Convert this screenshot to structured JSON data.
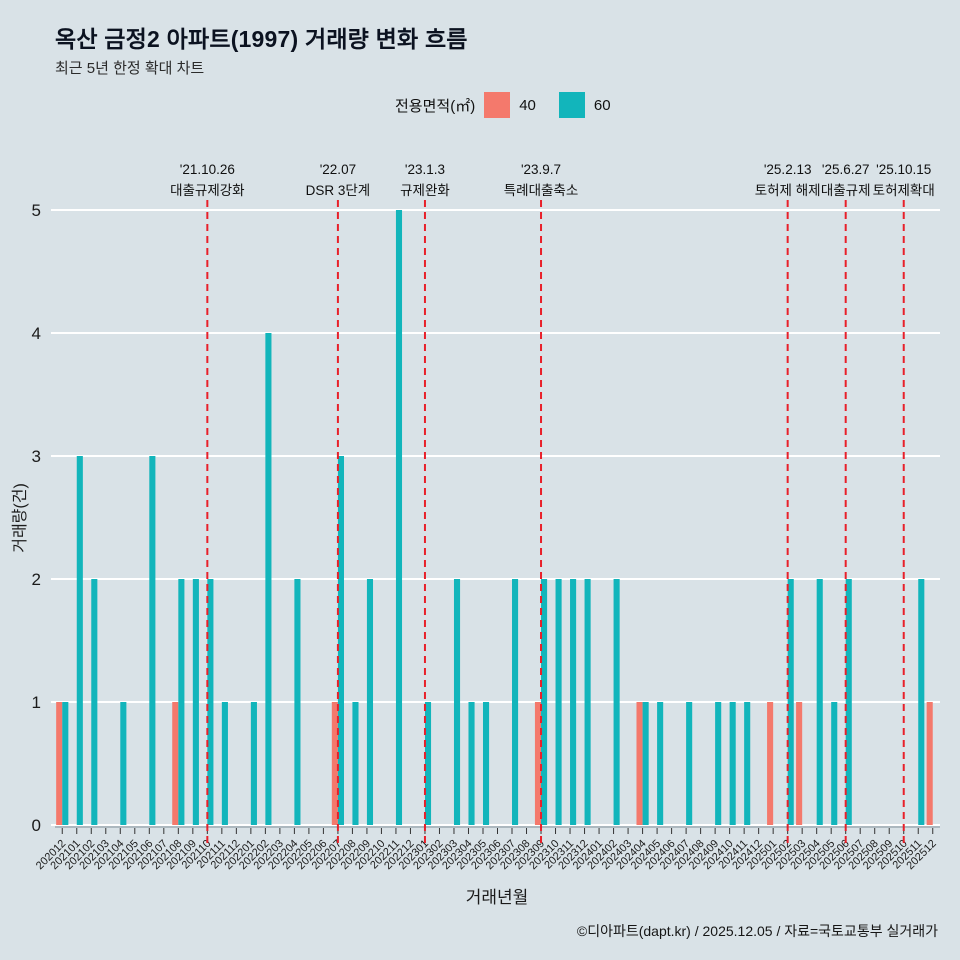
{
  "header": {
    "title": "옥산 금정2 아파트(1997) 거래량 변화 흐름",
    "subtitle": "최근 5년 한정 확대 차트"
  },
  "legend": {
    "title": "전용면적(㎡)",
    "items": [
      {
        "label": "40",
        "color": "#f4796c"
      },
      {
        "label": "60",
        "color": "#12b5bb"
      }
    ]
  },
  "chart_data": {
    "type": "bar",
    "title": "옥산 금정2 아파트(1997) 거래량 변화 흐름",
    "xlabel": "거래년월",
    "ylabel": "거래량(건)",
    "ylim": [
      0,
      5
    ],
    "yticks": [
      0,
      1,
      2,
      3,
      4,
      5
    ],
    "grid": "horizontal-white",
    "legend_position": "top",
    "annotation_color": "#e8202a",
    "categories": [
      "202012",
      "202101",
      "202102",
      "202103",
      "202104",
      "202105",
      "202106",
      "202107",
      "202108",
      "202109",
      "202110",
      "202111",
      "202112",
      "202201",
      "202202",
      "202203",
      "202204",
      "202205",
      "202206",
      "202207",
      "202208",
      "202209",
      "202210",
      "202211",
      "202212",
      "202301",
      "202302",
      "202303",
      "202304",
      "202305",
      "202306",
      "202307",
      "202308",
      "202309",
      "202310",
      "202311",
      "202312",
      "202401",
      "202402",
      "202403",
      "202404",
      "202405",
      "202406",
      "202407",
      "202408",
      "202409",
      "202410",
      "202411",
      "202412",
      "202501",
      "202502",
      "202503",
      "202504",
      "202505",
      "202506",
      "202507",
      "202508",
      "202509",
      "202510",
      "202511",
      "202512"
    ],
    "series": [
      {
        "name": "40",
        "color": "#f4796c",
        "values": [
          1,
          0,
          0,
          0,
          0,
          0,
          0,
          0,
          1,
          0,
          0,
          0,
          0,
          0,
          0,
          0,
          0,
          0,
          0,
          1,
          0,
          0,
          0,
          0,
          0,
          0,
          0,
          0,
          0,
          0,
          0,
          0,
          0,
          1,
          0,
          0,
          0,
          0,
          0,
          0,
          1,
          0,
          0,
          0,
          0,
          0,
          0,
          0,
          0,
          1,
          0,
          1,
          0,
          0,
          0,
          0,
          0,
          0,
          0,
          0,
          1
        ]
      },
      {
        "name": "60",
        "color": "#12b5bb",
        "values": [
          1,
          3,
          2,
          0,
          1,
          0,
          3,
          0,
          2,
          2,
          2,
          1,
          0,
          1,
          4,
          0,
          2,
          0,
          0,
          3,
          1,
          2,
          0,
          5,
          0,
          1,
          0,
          2,
          1,
          1,
          0,
          2,
          0,
          2,
          2,
          2,
          2,
          0,
          2,
          0,
          1,
          1,
          0,
          1,
          0,
          1,
          1,
          1,
          0,
          0,
          2,
          0,
          2,
          1,
          2,
          0,
          0,
          0,
          0,
          2,
          0
        ]
      }
    ],
    "annotations": [
      {
        "x": "202110",
        "date": "'21.10.26",
        "label": "대출규제강화"
      },
      {
        "x": "202207",
        "date": "'22.07",
        "label": "DSR 3단계"
      },
      {
        "x": "202301",
        "date": "'23.1.3",
        "label": "규제완화"
      },
      {
        "x": "202309",
        "date": "'23.9.7",
        "label": "특례대출축소"
      },
      {
        "x": "202502",
        "date": "'25.2.13",
        "label": "토허제 해제"
      },
      {
        "x": "202506",
        "date": "'25.6.27",
        "label": "대출규제"
      },
      {
        "x": "202510",
        "date": "'25.10.15",
        "label": "토허제확대"
      }
    ]
  },
  "footer": {
    "credit": "©디아파트(dapt.kr) / 2025.12.05 / 자료=국토교통부 실거래가"
  }
}
